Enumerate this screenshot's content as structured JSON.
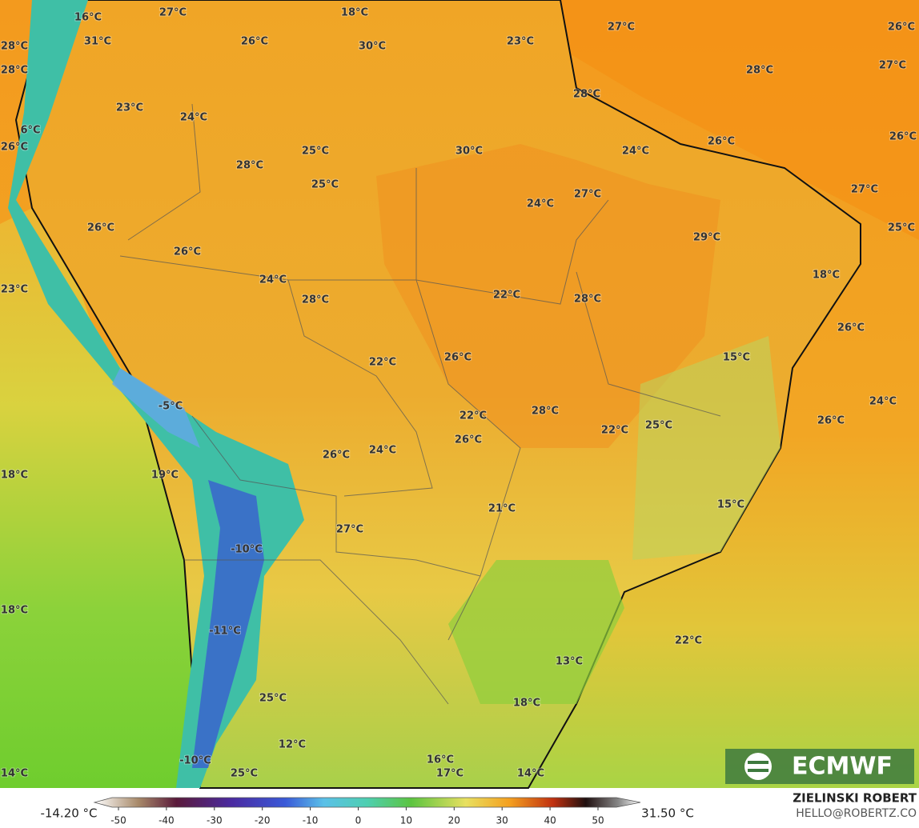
{
  "map": {
    "labels": [
      "16°C",
      "27°C",
      "18°C",
      "31°C",
      "26°C",
      "30°C",
      "23°C",
      "27°C",
      "26°C",
      "28°C",
      "28°C",
      "28°C",
      "27°C",
      "28°C",
      "23°C",
      "24°C",
      "6°C",
      "26°C",
      "25°C",
      "30°C",
      "24°C",
      "26°C",
      "26°C",
      "28°C",
      "25°C",
      "27°C",
      "24°C",
      "27°C",
      "26°C",
      "29°C",
      "25°C",
      "26°C",
      "24°C",
      "18°C",
      "23°C",
      "28°C",
      "22°C",
      "28°C",
      "26°C",
      "15°C",
      "26°C",
      "22°C",
      "-5°C",
      "24°C",
      "22°C",
      "28°C",
      "26°C",
      "25°C",
      "22°C",
      "26°C",
      "24°C",
      "26°C",
      "19°C",
      "18°C",
      "21°C",
      "15°C",
      "27°C",
      "-10°C",
      "18°C",
      "-11°C",
      "22°C",
      "13°C",
      "18°C",
      "25°C",
      "12°C",
      "16°C",
      "-10°C",
      "17°C",
      "25°C",
      "14°C",
      "14°C"
    ],
    "logo": "ECMWF"
  },
  "legend": {
    "min_label": "-14.20 °C",
    "max_label": "31.50 °C",
    "ticks": [
      -50,
      -40,
      -30,
      -20,
      -10,
      0,
      10,
      20,
      30,
      40,
      50
    ]
  },
  "credit": {
    "author": "ZIELINSKI ROBERT",
    "contact": "HELLO@ROBERTZ.CO"
  }
}
